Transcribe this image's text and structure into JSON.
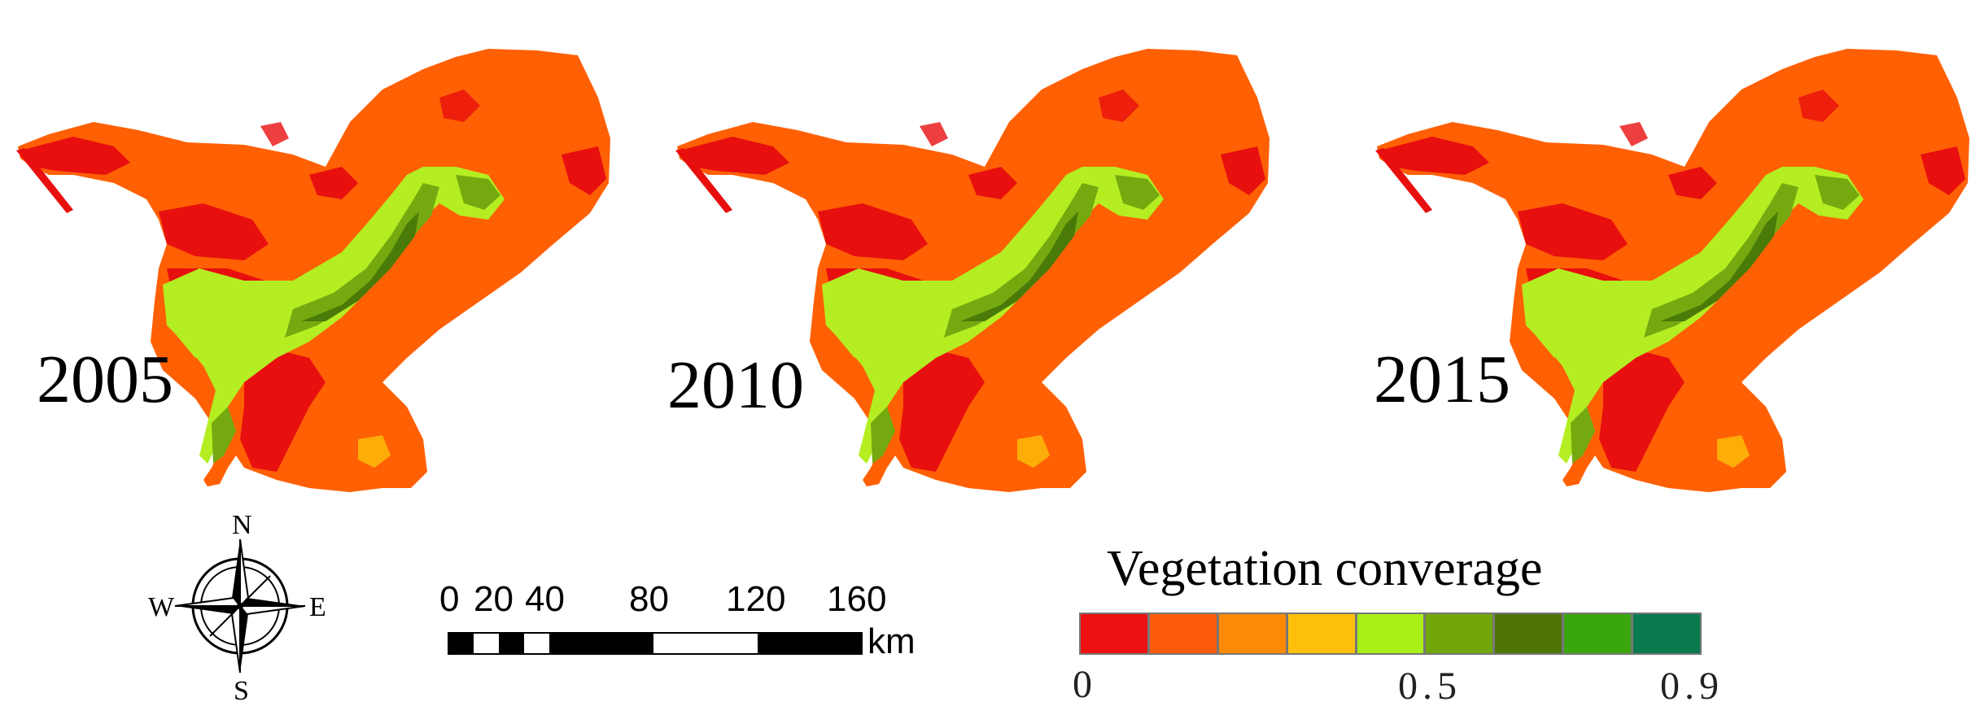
{
  "maps": [
    {
      "year": "2005"
    },
    {
      "year": "2010"
    },
    {
      "year": "2015"
    }
  ],
  "compass": {
    "n": "N",
    "s": "S",
    "e": "E",
    "w": "W"
  },
  "scale_bar": {
    "ticks": [
      "0",
      "20",
      "40",
      "80",
      "120",
      "160"
    ],
    "unit": "km"
  },
  "legend": {
    "title": "Vegetation converage",
    "colors": [
      "#ee1111",
      "#fc5c0a",
      "#fd8a05",
      "#fcc00a",
      "#a8f018",
      "#72a70b",
      "#4e7503",
      "#39a60b",
      "#0a7a4e"
    ],
    "tick_labels": [
      "0",
      "0.5",
      "0.9"
    ]
  },
  "palette": {
    "base": "#ff6004",
    "bare": "#e80f0f",
    "veg_light": "#b4ee22",
    "veg_mid": "#74aa10",
    "veg_dark": "#4a7a08"
  }
}
